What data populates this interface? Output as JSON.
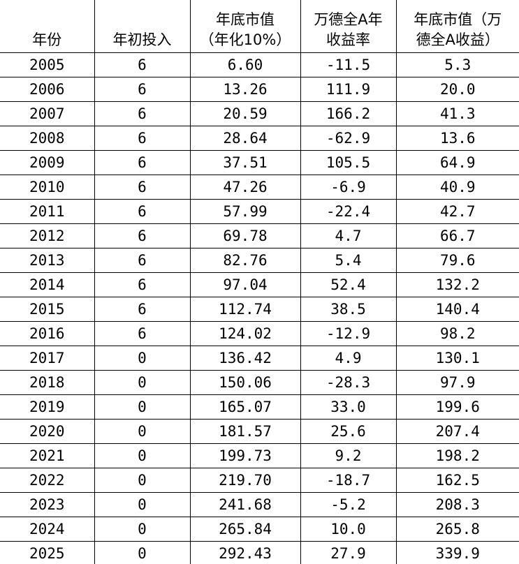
{
  "table": {
    "header": [
      [
        "年份"
      ],
      [
        "年初投入"
      ],
      [
        "年底市值",
        "（年化10%）"
      ],
      [
        "万德全A年",
        "收益率"
      ],
      [
        "年底市值（万",
        "德全A收益）"
      ]
    ],
    "rows": [
      [
        "2005",
        "6",
        "6.60",
        "-11.5",
        "5.3"
      ],
      [
        "2006",
        "6",
        "13.26",
        "111.9",
        "20.0"
      ],
      [
        "2007",
        "6",
        "20.59",
        "166.2",
        "41.3"
      ],
      [
        "2008",
        "6",
        "28.64",
        "-62.9",
        "13.6"
      ],
      [
        "2009",
        "6",
        "37.51",
        "105.5",
        "64.9"
      ],
      [
        "2010",
        "6",
        "47.26",
        "-6.9",
        "40.9"
      ],
      [
        "2011",
        "6",
        "57.99",
        "-22.4",
        "42.7"
      ],
      [
        "2012",
        "6",
        "69.78",
        "4.7",
        "66.7"
      ],
      [
        "2013",
        "6",
        "82.76",
        "5.4",
        "79.6"
      ],
      [
        "2014",
        "6",
        "97.04",
        "52.4",
        "132.2"
      ],
      [
        "2015",
        "6",
        "112.74",
        "38.5",
        "140.4"
      ],
      [
        "2016",
        "6",
        "124.02",
        "-12.9",
        "98.2"
      ],
      [
        "2017",
        "0",
        "136.42",
        "4.9",
        "130.1"
      ],
      [
        "2018",
        "0",
        "150.06",
        "-28.3",
        "97.9"
      ],
      [
        "2019",
        "0",
        "165.07",
        "33.0",
        "199.6"
      ],
      [
        "2020",
        "0",
        "181.57",
        "25.6",
        "207.4"
      ],
      [
        "2021",
        "0",
        "199.73",
        "9.2",
        "198.2"
      ],
      [
        "2022",
        "0",
        "219.70",
        "-18.7",
        "162.5"
      ],
      [
        "2023",
        "0",
        "241.68",
        "-5.2",
        "208.3"
      ],
      [
        "2024",
        "0",
        "265.84",
        "10.0",
        "265.8"
      ],
      [
        "2025",
        "0",
        "292.43",
        "27.9",
        "339.9"
      ]
    ]
  }
}
